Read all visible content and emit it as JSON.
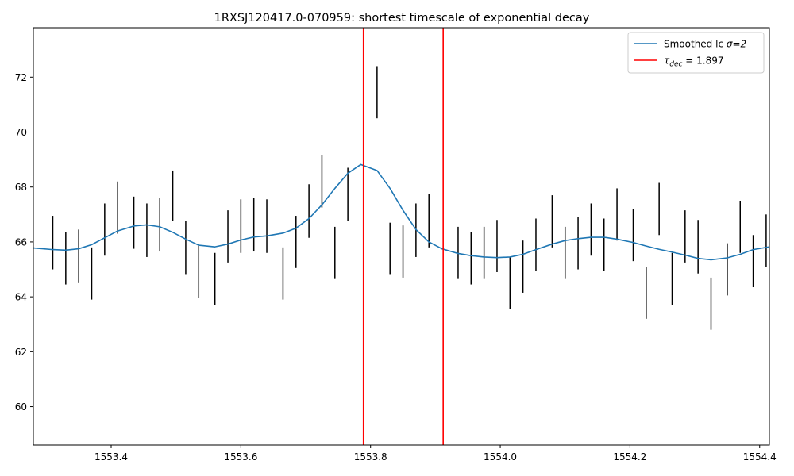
{
  "chart_data": {
    "type": "line",
    "title": "1RXSJ120417.0-070959: shortest timescale of exponential decay",
    "xlabel": "",
    "ylabel": "",
    "xlim": [
      1553.28,
      1554.415
    ],
    "ylim": [
      58.6,
      73.8
    ],
    "xticks": [
      1553.4,
      1553.6,
      1553.8,
      1554.0,
      1554.2,
      1554.4
    ],
    "xtick_labels": [
      "1553.4",
      "1553.6",
      "1553.8",
      "1554.0",
      "1554.2",
      "1554.4"
    ],
    "yticks": [
      60,
      62,
      64,
      66,
      68,
      70,
      72
    ],
    "ytick_labels": [
      "60",
      "62",
      "64",
      "66",
      "68",
      "70",
      "72"
    ],
    "grid": false,
    "legend_position": "top-right",
    "series": [
      {
        "name": "Smoothed lc σ=2",
        "legend_label": "Smoothed lc ",
        "legend_suffix": "σ=2",
        "color": "#1f77b4",
        "x": [
          1553.28,
          1553.31,
          1553.33,
          1553.35,
          1553.37,
          1553.39,
          1553.41,
          1553.435,
          1553.455,
          1553.475,
          1553.495,
          1553.515,
          1553.535,
          1553.56,
          1553.58,
          1553.6,
          1553.62,
          1553.64,
          1553.665,
          1553.685,
          1553.705,
          1553.725,
          1553.745,
          1553.765,
          1553.785,
          1553.81,
          1553.83,
          1553.85,
          1553.87,
          1553.89,
          1553.91,
          1553.935,
          1553.955,
          1553.975,
          1553.995,
          1554.015,
          1554.035,
          1554.055,
          1554.08,
          1554.1,
          1554.12,
          1554.14,
          1554.16,
          1554.18,
          1554.205,
          1554.225,
          1554.245,
          1554.265,
          1554.285,
          1554.305,
          1554.325,
          1554.35,
          1554.37,
          1554.39,
          1554.415
        ],
        "y": [
          65.78,
          65.72,
          65.7,
          65.75,
          65.9,
          66.15,
          66.4,
          66.58,
          66.62,
          66.55,
          66.35,
          66.1,
          65.88,
          65.82,
          65.92,
          66.07,
          66.18,
          66.22,
          66.32,
          66.5,
          66.85,
          67.35,
          67.95,
          68.5,
          68.82,
          68.6,
          67.95,
          67.15,
          66.45,
          66.0,
          65.75,
          65.58,
          65.5,
          65.45,
          65.43,
          65.45,
          65.55,
          65.72,
          65.92,
          66.05,
          66.12,
          66.17,
          66.17,
          66.1,
          65.98,
          65.85,
          65.73,
          65.63,
          65.52,
          65.4,
          65.35,
          65.42,
          65.55,
          65.72,
          65.82
        ]
      },
      {
        "name": "τdec = 1.897",
        "legend_label": "τ",
        "legend_sub": "dec",
        "legend_suffix": " = 1.897",
        "color": "#ff0000",
        "vlines": [
          1553.789,
          1553.912
        ]
      }
    ],
    "errorbars": {
      "color": "#000000",
      "x": [
        1553.31,
        1553.33,
        1553.35,
        1553.37,
        1553.39,
        1553.41,
        1553.435,
        1553.455,
        1553.475,
        1553.495,
        1553.515,
        1553.535,
        1553.56,
        1553.58,
        1553.6,
        1553.62,
        1553.64,
        1553.665,
        1553.685,
        1553.705,
        1553.725,
        1553.745,
        1553.765,
        1553.81,
        1553.83,
        1553.85,
        1553.87,
        1553.89,
        1553.935,
        1553.955,
        1553.975,
        1553.995,
        1554.015,
        1554.035,
        1554.055,
        1554.08,
        1554.1,
        1554.12,
        1554.14,
        1554.16,
        1554.18,
        1554.205,
        1554.225,
        1554.245,
        1554.265,
        1554.285,
        1554.305,
        1554.325,
        1554.35,
        1554.37,
        1554.39,
        1554.41
      ],
      "low": [
        65.0,
        64.45,
        64.5,
        63.9,
        65.5,
        66.3,
        65.75,
        65.45,
        65.65,
        66.75,
        64.8,
        63.95,
        63.7,
        65.25,
        65.6,
        65.65,
        65.6,
        63.9,
        65.05,
        66.15,
        67.25,
        64.65,
        66.75,
        70.5,
        64.8,
        64.7,
        65.45,
        65.8,
        64.65,
        64.45,
        64.65,
        64.9,
        63.55,
        64.15,
        64.95,
        65.8,
        64.65,
        65.0,
        65.5,
        64.95,
        66.05,
        65.3,
        63.2,
        66.25,
        63.7,
        65.25,
        64.85,
        62.8,
        64.05,
        65.6,
        64.35,
        65.1
      ],
      "high": [
        66.95,
        66.35,
        66.45,
        65.8,
        67.4,
        68.2,
        67.65,
        67.4,
        67.6,
        68.6,
        66.75,
        65.9,
        65.6,
        67.15,
        67.55,
        67.6,
        67.55,
        65.8,
        66.95,
        68.1,
        69.15,
        66.55,
        68.7,
        72.4,
        66.7,
        66.6,
        67.4,
        67.75,
        66.55,
        66.35,
        66.55,
        66.8,
        65.45,
        66.05,
        66.85,
        67.7,
        66.55,
        66.9,
        67.4,
        66.85,
        67.95,
        67.2,
        65.1,
        68.15,
        65.6,
        67.15,
        66.8,
        64.7,
        65.95,
        67.5,
        66.25,
        67.0
      ]
    }
  }
}
